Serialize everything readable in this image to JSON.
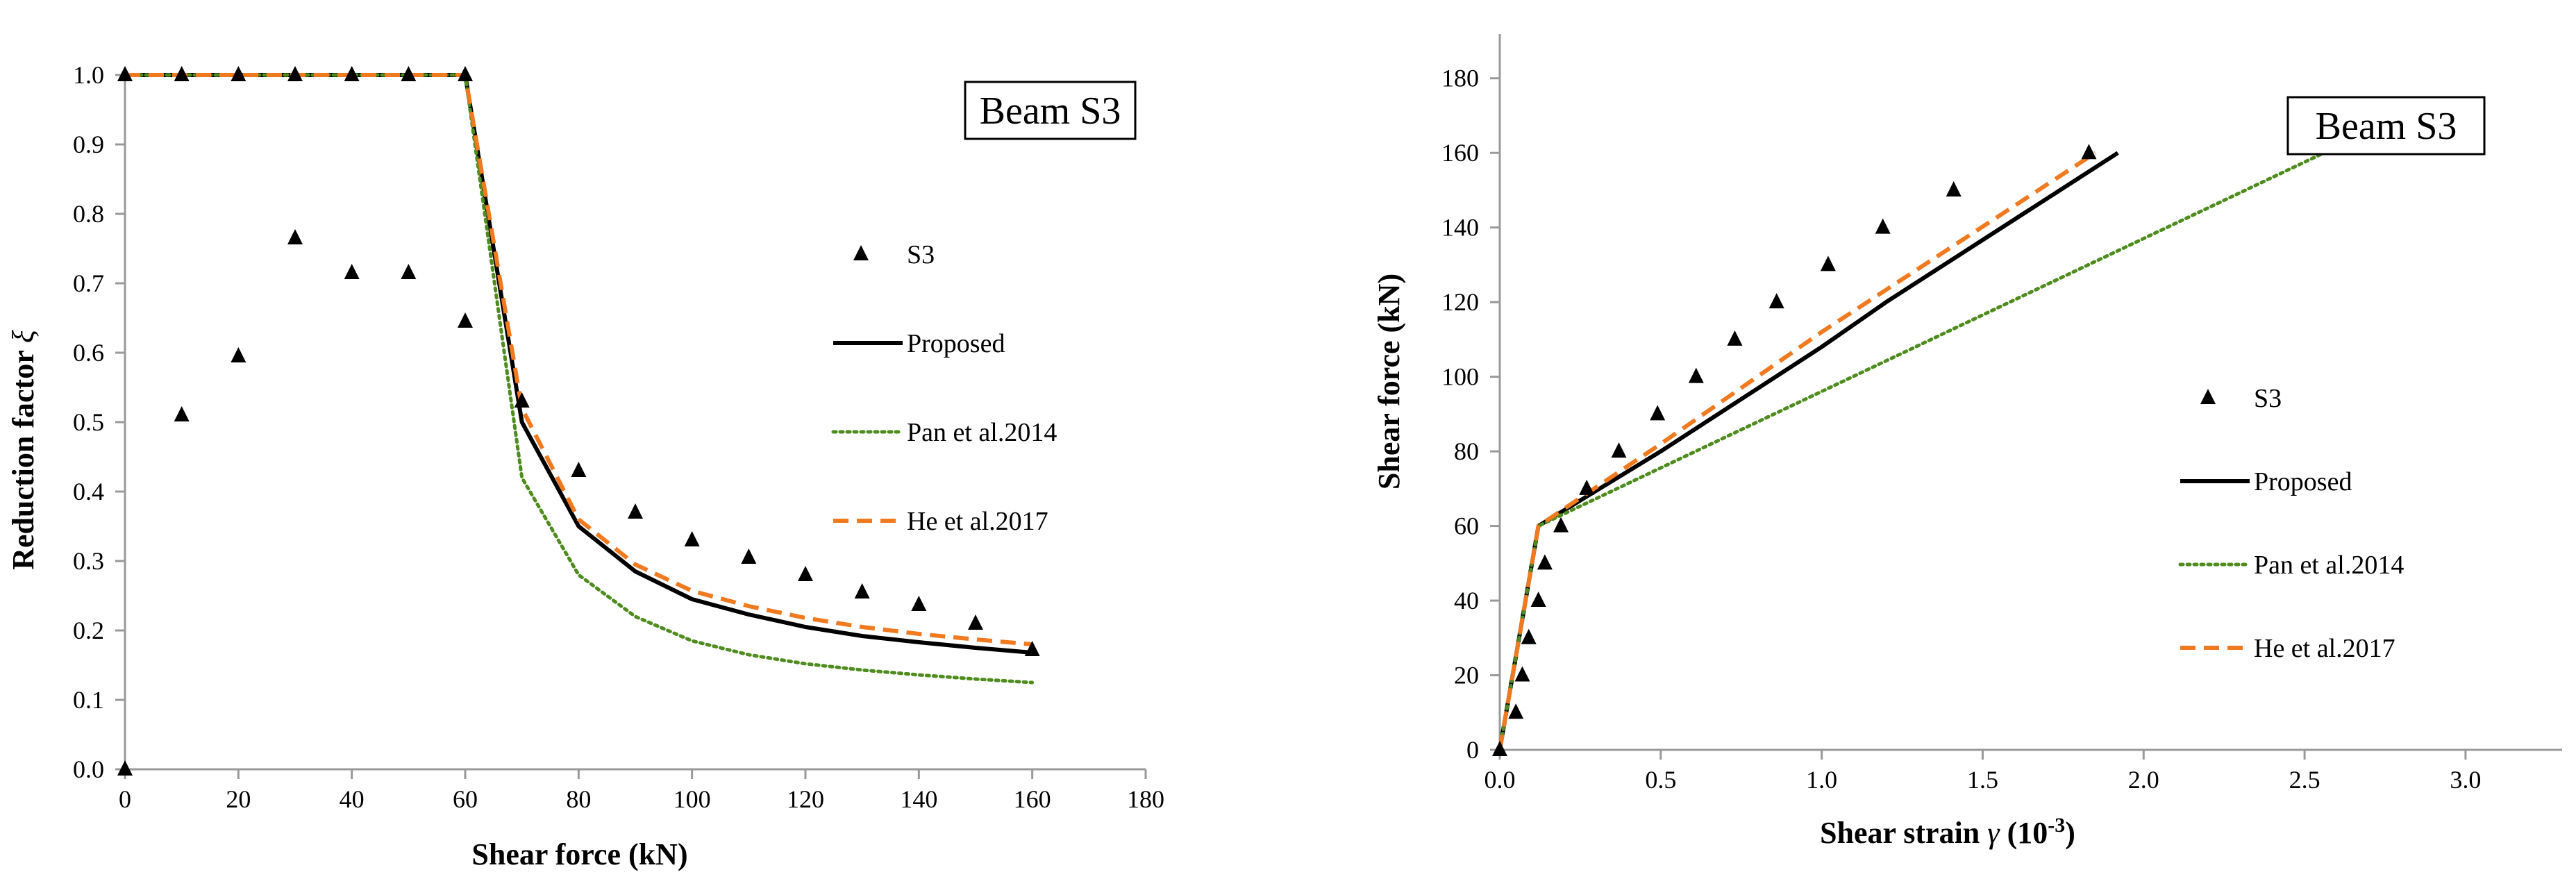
{
  "chart_data": [
    {
      "type": "scatter+line",
      "id": "left",
      "box_label": "Beam S3",
      "xlabel": "Shear force (kN)",
      "ylabel_main": "Reduction factor",
      "ylabel_symbol": "ξ",
      "xlim": [
        0,
        180
      ],
      "ylim": [
        0,
        1.0
      ],
      "xticks": [
        "0",
        "20",
        "40",
        "60",
        "80",
        "100",
        "120",
        "140",
        "160",
        "180"
      ],
      "yticks": [
        "0.0",
        "0.1",
        "0.2",
        "0.3",
        "0.4",
        "0.5",
        "0.6",
        "0.7",
        "0.8",
        "0.9",
        "1.0"
      ],
      "xtick_values": [
        0,
        20,
        40,
        60,
        80,
        100,
        120,
        140,
        160,
        180
      ],
      "ytick_values": [
        0,
        0.1,
        0.2,
        0.3,
        0.4,
        0.5,
        0.6,
        0.7,
        0.8,
        0.9,
        1.0
      ],
      "legend_position": "right",
      "series": [
        {
          "name": "S3",
          "kind": "markers",
          "color": "#000000",
          "points": [
            [
              0,
              1.0
            ],
            [
              10,
              1.0
            ],
            [
              20,
              1.0
            ],
            [
              30,
              1.0
            ],
            [
              40,
              1.0
            ],
            [
              50,
              1.0
            ],
            [
              60,
              1.0
            ],
            [
              0,
              0.0
            ],
            [
              10,
              0.51
            ],
            [
              20,
              0.595
            ],
            [
              30,
              0.765
            ],
            [
              40,
              0.715
            ],
            [
              50,
              0.715
            ],
            [
              60,
              0.645
            ],
            [
              70,
              0.53
            ],
            [
              80,
              0.43
            ],
            [
              90,
              0.37
            ],
            [
              100,
              0.33
            ],
            [
              110,
              0.305
            ],
            [
              120,
              0.28
            ],
            [
              130,
              0.255
            ],
            [
              140,
              0.237
            ],
            [
              150,
              0.21
            ],
            [
              160,
              0.172
            ]
          ]
        },
        {
          "name": "Proposed",
          "kind": "solid",
          "color": "#000000",
          "points": [
            [
              0,
              1.0
            ],
            [
              60,
              1.0
            ],
            [
              70,
              0.5
            ],
            [
              80,
              0.35
            ],
            [
              90,
              0.285
            ],
            [
              100,
              0.245
            ],
            [
              110,
              0.223
            ],
            [
              120,
              0.205
            ],
            [
              130,
              0.192
            ],
            [
              140,
              0.183
            ],
            [
              150,
              0.175
            ],
            [
              160,
              0.168
            ]
          ]
        },
        {
          "name": "Pan et al.2014",
          "kind": "dotted",
          "color": "#4e8c1e",
          "points": [
            [
              0,
              1.0
            ],
            [
              60,
              1.0
            ],
            [
              70,
              0.42
            ],
            [
              80,
              0.28
            ],
            [
              90,
              0.22
            ],
            [
              100,
              0.185
            ],
            [
              110,
              0.165
            ],
            [
              120,
              0.152
            ],
            [
              130,
              0.143
            ],
            [
              140,
              0.136
            ],
            [
              150,
              0.13
            ],
            [
              160,
              0.125
            ]
          ]
        },
        {
          "name": "He et al.2017",
          "kind": "dashed",
          "color": "#f07a1f",
          "points": [
            [
              0,
              1.0
            ],
            [
              60,
              1.0
            ],
            [
              70,
              0.52
            ],
            [
              80,
              0.36
            ],
            [
              90,
              0.295
            ],
            [
              100,
              0.257
            ],
            [
              110,
              0.235
            ],
            [
              120,
              0.218
            ],
            [
              130,
              0.205
            ],
            [
              140,
              0.195
            ],
            [
              150,
              0.187
            ],
            [
              160,
              0.18
            ]
          ]
        }
      ]
    },
    {
      "type": "scatter+line",
      "id": "right",
      "box_label": "Beam S3",
      "xlabel_main": "Shear strain",
      "xlabel_symbol": "γ",
      "xlabel_units_open": "(10",
      "xlabel_units_exp": "-3",
      "xlabel_units_close": ")",
      "ylabel": "Shear force (kN)",
      "xlim": [
        0,
        3.3
      ],
      "ylim": [
        0,
        190
      ],
      "xticks": [
        "0.0",
        "0.5",
        "1.0",
        "1.5",
        "2.0",
        "2.5",
        "3.0"
      ],
      "yticks": [
        "0",
        "20",
        "40",
        "60",
        "80",
        "100",
        "120",
        "140",
        "160",
        "180"
      ],
      "xtick_values": [
        0,
        0.5,
        1.0,
        1.5,
        2.0,
        2.5,
        3.0
      ],
      "ytick_values": [
        0,
        20,
        40,
        60,
        80,
        100,
        120,
        140,
        160,
        180
      ],
      "legend_position": "right",
      "series": [
        {
          "name": "S3",
          "kind": "markers",
          "color": "#000000",
          "points": [
            [
              0.0,
              0
            ],
            [
              0.05,
              10
            ],
            [
              0.07,
              20
            ],
            [
              0.09,
              30
            ],
            [
              0.12,
              40
            ],
            [
              0.14,
              50
            ],
            [
              0.19,
              60
            ],
            [
              0.27,
              70
            ],
            [
              0.37,
              80
            ],
            [
              0.49,
              90
            ],
            [
              0.61,
              100
            ],
            [
              0.73,
              110
            ],
            [
              0.86,
              120
            ],
            [
              1.02,
              130
            ],
            [
              1.19,
              140
            ],
            [
              1.41,
              150
            ],
            [
              1.83,
              160
            ]
          ]
        },
        {
          "name": "Proposed",
          "kind": "solid",
          "color": "#000000",
          "points": [
            [
              0,
              0
            ],
            [
              0.12,
              60
            ],
            [
              0.5,
              80
            ],
            [
              1.0,
              108
            ],
            [
              1.2,
              120
            ],
            [
              1.92,
              160
            ]
          ]
        },
        {
          "name": "Pan et al.2014",
          "kind": "dotted",
          "color": "#4e8c1e",
          "points": [
            [
              0,
              0
            ],
            [
              0.12,
              60
            ],
            [
              2.56,
              160
            ]
          ]
        },
        {
          "name": "He et al.2017",
          "kind": "dashed",
          "color": "#f07a1f",
          "points": [
            [
              0,
              0
            ],
            [
              0.12,
              60
            ],
            [
              0.5,
              82
            ],
            [
              1.0,
              112
            ],
            [
              1.85,
              160
            ]
          ]
        }
      ]
    }
  ]
}
